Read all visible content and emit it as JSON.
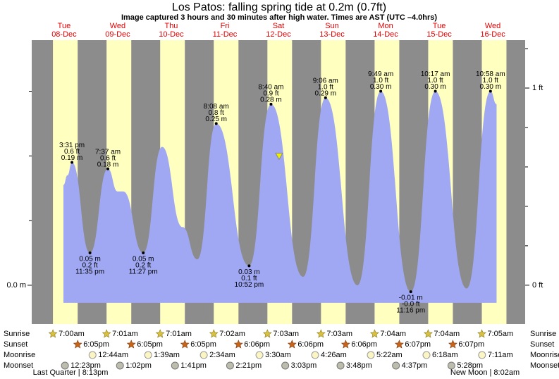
{
  "chart_data": {
    "type": "area",
    "title": "Los Patos: falling  spring tide at 0.2m (0.7ft)",
    "subtitle": "Image captured 3 hours and 30 minutes after high water. Times are AST (UTC –4.0hrs)",
    "days": [
      {
        "name": "Tue",
        "date": "08-Dec"
      },
      {
        "name": "Wed",
        "date": "09-Dec"
      },
      {
        "name": "Thu",
        "date": "10-Dec"
      },
      {
        "name": "Fri",
        "date": "11-Dec"
      },
      {
        "name": "Sat",
        "date": "12-Dec"
      },
      {
        "name": "Sun",
        "date": "13-Dec"
      },
      {
        "name": "Mon",
        "date": "14-Dec"
      },
      {
        "name": "Tue",
        "date": "15-Dec"
      },
      {
        "name": "Wed",
        "date": "16-Dec"
      }
    ],
    "xlim": [
      -2.5,
      218.5
    ],
    "ylim": [
      -0.06,
      0.379
    ],
    "yticks": [
      {
        "value": 0,
        "label": "0.0 m"
      }
    ],
    "yminor": [
      0.1,
      0.2,
      0.3
    ],
    "y2lim": [
      -0.197,
      1.243
    ],
    "y2ticks": [
      {
        "value": 0,
        "label": "0 ft"
      },
      {
        "value": 1,
        "label": "1 ft"
      }
    ],
    "y2minor": [
      0.2,
      0.4,
      0.6,
      0.8,
      1.2
    ],
    "curve": {
      "color": "#a0a8f4",
      "x": [
        11.7,
        13.5,
        15.52,
        23.58,
        31.62,
        36,
        38.5,
        47.45,
        55.9,
        65,
        71.7,
        80.13,
        94.87,
        104.67,
        119.05,
        129.1,
        143.4,
        153.82,
        167.27,
        178.28,
        192.3,
        202.97,
        205.7
      ],
      "values": [
        0.155,
        0.17,
        0.19,
        0.05,
        0.18,
        0.145,
        0.145,
        0.05,
        0.214,
        0.09,
        0.04,
        0.25,
        0.03,
        0.28,
        0.013,
        0.29,
        0,
        0.3,
        -0.01,
        0.3,
        -0.005,
        0.3,
        0.28
      ]
    },
    "events": [
      {
        "type": "high",
        "hours": 15.52,
        "value": 0.19,
        "time": "3:31 pm",
        "ft": "0.6 ft",
        "m": "0.19 m"
      },
      {
        "type": "low",
        "hours": 23.58,
        "value": 0.05,
        "time": "11:35 pm",
        "ft": "0.2 ft",
        "m": "0.05 m"
      },
      {
        "type": "high",
        "hours": 31.62,
        "value": 0.18,
        "time": "7:37 am",
        "ft": "0.6 ft",
        "m": "0.18 m"
      },
      {
        "type": "low",
        "hours": 47.45,
        "value": 0.05,
        "time": "11:27 pm",
        "ft": "0.2 ft",
        "m": "0.05 m"
      },
      {
        "type": "high",
        "hours": 80.13,
        "value": 0.25,
        "time": "8:08 am",
        "ft": "0.8 ft",
        "m": "0.25 m"
      },
      {
        "type": "low",
        "hours": 94.87,
        "value": 0.03,
        "time": "10:52 pm",
        "ft": "0.1 ft",
        "m": "0.03 m"
      },
      {
        "type": "high",
        "hours": 104.67,
        "value": 0.28,
        "time": "8:40 am",
        "ft": "0.9 ft",
        "m": "0.28 m"
      },
      {
        "type": "high",
        "hours": 129.1,
        "value": 0.29,
        "time": "9:06 am",
        "ft": "1.0 ft",
        "m": "0.29 m"
      },
      {
        "type": "high",
        "hours": 153.82,
        "value": 0.3,
        "time": "9:49 am",
        "ft": "1.0 ft",
        "m": "0.30 m"
      },
      {
        "type": "low",
        "hours": 167.27,
        "value": -0.01,
        "time": "11:16 pm",
        "ft": "-0.0 ft",
        "m": "-0.01 m"
      },
      {
        "type": "high",
        "hours": 178.28,
        "value": 0.3,
        "time": "10:17 am",
        "ft": "1.0 ft",
        "m": "0.30 m"
      },
      {
        "type": "high",
        "hours": 202.97,
        "value": 0.3,
        "time": "10:58 am",
        "ft": "1.0 ft",
        "m": "0.30 m"
      }
    ],
    "now": {
      "hours": 108.3,
      "value": 0.2,
      "color": "#f0f000"
    },
    "rows": {
      "labels": [
        "Sunrise",
        "Sunset",
        "Moonrise",
        "Moonset"
      ],
      "sunrise": [
        "7:00am",
        "7:01am",
        "7:01am",
        "7:02am",
        "7:03am",
        "7:03am",
        "7:04am",
        "7:04am",
        "7:05am"
      ],
      "sunset": [
        "6:05pm",
        "6:05pm",
        "6:05pm",
        "6:06pm",
        "6:06pm",
        "6:06pm",
        "6:07pm",
        "6:07pm",
        null
      ],
      "moonrise": [
        null,
        "12:44am",
        "1:39am",
        "2:34am",
        "3:30am",
        "4:26am",
        "5:22am",
        "6:18am",
        "7:11am"
      ],
      "moonset": [
        "12:23pm",
        "1:02pm",
        "1:41pm",
        "2:21pm",
        "3:03pm",
        "3:48pm",
        "4:37pm",
        "5:28pm",
        null
      ]
    },
    "moon_phases": [
      "Last Quarter | 8:13pm",
      "New Moon | 8:02am"
    ]
  }
}
